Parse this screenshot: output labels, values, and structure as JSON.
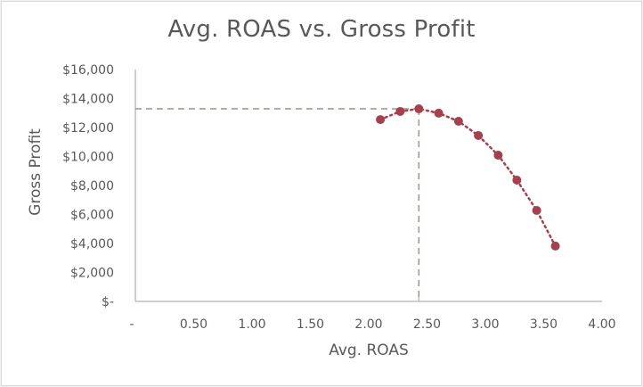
{
  "chart_data": {
    "type": "scatter",
    "title": "Avg. ROAS vs. Gross Profit",
    "xlabel": "Avg. ROAS",
    "ylabel": "Gross Profit",
    "xlim": [
      0,
      4.0
    ],
    "ylim": [
      0,
      16000
    ],
    "x_tick_labels": [
      "-",
      "0.50",
      "1.00",
      "1.50",
      "2.00",
      "2.50",
      "3.00",
      "3.50",
      "4.00"
    ],
    "y_tick_labels": [
      "$-",
      "$2,000",
      "$4,000",
      "$6,000",
      "$8,000",
      "$10,000",
      "$12,000",
      "$14,000",
      "$16,000"
    ],
    "grid": false,
    "legend": null,
    "series": [
      {
        "name": "Gross Profit",
        "style": "markers with dotted connecting line",
        "color": "#a5404f",
        "x": [
          2.1,
          2.27,
          2.43,
          2.6,
          2.77,
          2.94,
          3.11,
          3.27,
          3.44,
          3.6
        ],
        "y": [
          12550,
          13110,
          13290,
          12990,
          12430,
          11450,
          10090,
          8370,
          6280,
          3820
        ]
      }
    ],
    "annotations": [
      {
        "type": "dashed-reference-lines",
        "x": 2.43,
        "y": 13290,
        "color": "#8a9a8a",
        "note": "marks maximum gross profit point"
      }
    ]
  },
  "colors": {
    "marker": "#a5404f",
    "axis": "#bfbfbf",
    "text": "#595959",
    "reference": "#8c9a8c"
  }
}
